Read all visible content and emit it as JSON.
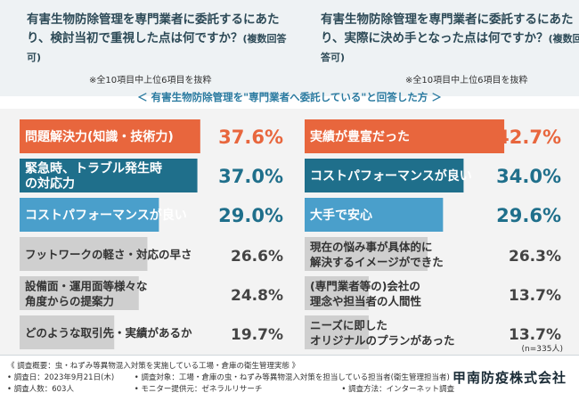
{
  "header": {
    "left_title": "有害生物防除管理を専門業者に委託するにあたり、検討当初で重視した点は何ですか？",
    "left_paren": "(複数回答可)",
    "right_title": "有害生物防除管理を専門業者に委託するにあたり、実際に決め手となった点は何ですか？",
    "right_paren": "(複数回答可)",
    "left_note": "※全10項目中上位6項目を抜粋",
    "right_note": "※全10項目中上位6項目を抜粋",
    "subhead": "＜ 有害生物防除管理を\"専門業者へ委託している\"と回答した方 ＞"
  },
  "chart_data": [
    {
      "type": "bar",
      "orientation": "horizontal",
      "unit": "%",
      "categories": [
        "問題解決力(知識・技術力)",
        "緊急時、トラブル発生時の対応力",
        "コストパフォーマンスが良い",
        "フットワークの軽さ・対応の早さ",
        "設備面・運用面等様々な角度からの提案力",
        "どのような取引先・実績があるか"
      ],
      "values": [
        37.6,
        37.0,
        29.0,
        26.6,
        24.8,
        19.7
      ],
      "labels": [
        "37.6%",
        "37.0%",
        "29.0%",
        "26.6%",
        "24.8%",
        "19.7%"
      ],
      "lines": [
        [
          "問題解決力(知識・技術力)"
        ],
        [
          "緊急時、トラブル発生時",
          "の対応力"
        ],
        [
          "コストパフォーマンスが良い"
        ],
        [
          "フットワークの軽さ・対応の早さ"
        ],
        [
          "設備面・運用面等様々な",
          "角度からの提案力"
        ],
        [
          "どのような取引先・実績があるか"
        ]
      ],
      "colors": [
        "#e8663d",
        "#1f6f8b",
        "#4a9fcb",
        "#cfcfcf",
        "#cfcfcf",
        "#cfcfcf"
      ]
    },
    {
      "type": "bar",
      "orientation": "horizontal",
      "unit": "%",
      "categories": [
        "実績が豊富だった",
        "コストパフォーマンスが良い",
        "大手で安心",
        "現在の悩み事が具体的に解決するイメージができた",
        "(専門業者等の)会社の理念や担当者の人間性",
        "ニーズに即したオリジナルのプランがあった"
      ],
      "values": [
        42.7,
        34.0,
        29.6,
        26.3,
        13.7,
        13.7
      ],
      "labels": [
        "42.7%",
        "34.0%",
        "29.6%",
        "26.3%",
        "13.7%",
        "13.7%"
      ],
      "lines": [
        [
          "実績が豊富だった"
        ],
        [
          "コストパフォーマンスが良い"
        ],
        [
          "大手で安心"
        ],
        [
          "現在の悩み事が具体的に",
          "解決するイメージができた"
        ],
        [
          "(専門業者等の)会社の",
          "理念や担当者の人間性"
        ],
        [
          "ニーズに即した",
          "オリジナルのプランがあった"
        ]
      ],
      "colors": [
        "#e8663d",
        "#1f6f8b",
        "#4a9fcb",
        "#cfcfcf",
        "#cfcfcf",
        "#cfcfcf"
      ]
    }
  ],
  "n_note": "(n=335人)",
  "survey": {
    "title": "《 調査概要：虫・ねずみ等異物混入対策を実施している工場・倉庫の衛生管理実態 》",
    "date": "• 調査日：2023年9月21日(木)",
    "target": "• 調査対象：工場・倉庫の虫・ねずみ等異物混入対策を担当している担当者(衛生管理担当者)",
    "count": "• 調査人数：603人",
    "provider": "• モニター提供元：ゼネラルリサーチ",
    "method": "• 調査方法：インターネット調査"
  },
  "company": "甲南防疫株式会社"
}
